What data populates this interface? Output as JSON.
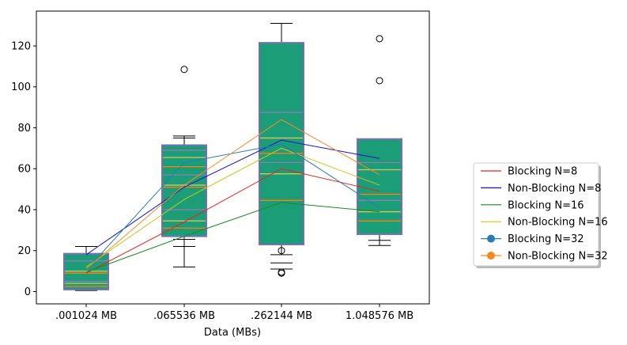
{
  "chart_data": {
    "type": "boxplot",
    "categories": [
      ".001024 MB",
      ".065536 MB",
      ".262144 MB",
      "1.048576 MB"
    ],
    "xlabel": "Data (MBs)",
    "ylabel": "",
    "title": "",
    "ylim": [
      -6,
      137
    ],
    "yticks": [
      0,
      20,
      40,
      60,
      80,
      100,
      120
    ],
    "grid": false,
    "legend_position": "right",
    "box_color": "#1b9e77",
    "box_edge_color": "#7570b3",
    "inner_line_colors": [
      "#ff7f0e",
      "#d6c35a",
      "#8c7fb3"
    ],
    "boxes": [
      {
        "whisker_low": 0.5,
        "q1": 1,
        "q3": 18.5,
        "whisker_high": 22,
        "lines": [
          2.5,
          4,
          5,
          9,
          10,
          15
        ],
        "outliers": []
      },
      {
        "whisker_low": 12,
        "q1": 27,
        "q3": 71.5,
        "whisker_high": 76,
        "lines": [
          31,
          34.5,
          40,
          51,
          52,
          57,
          61,
          65.5,
          69
        ],
        "caps_extra": [
          22,
          25.5,
          75
        ],
        "outliers": [
          108.5
        ]
      },
      {
        "whisker_low": 18,
        "q1": 23,
        "q3": 121.5,
        "whisker_high": 131,
        "lines": [
          44.5,
          57.5,
          63,
          67.5,
          75,
          87.5
        ],
        "caps_extra": [
          11,
          14
        ],
        "outliers": [
          9,
          9.5,
          20
        ]
      },
      {
        "whisker_low": 22.5,
        "q1": 28,
        "q3": 74.5,
        "whisker_high": 74.5,
        "lines": [
          34.5,
          39,
          44.5,
          47.5,
          59.5,
          63
        ],
        "caps_extra": [
          25
        ],
        "outliers": [
          103,
          123.5
        ]
      }
    ],
    "series": [
      {
        "name": "Blocking N=8",
        "color": "#e8241c",
        "marker": false,
        "values": [
          9,
          34,
          60,
          49
        ]
      },
      {
        "name": "Non-Blocking N=8",
        "color": "#1411c9",
        "marker": false,
        "values": [
          18,
          51,
          74,
          65
        ]
      },
      {
        "name": "Blocking N=16",
        "color": "#1d8a1d",
        "marker": false,
        "values": [
          9.5,
          27,
          43.5,
          39
        ]
      },
      {
        "name": "Non-Blocking N=16",
        "color": "#c8c71d",
        "marker": false,
        "values": [
          12,
          45,
          70,
          52
        ]
      },
      {
        "name": "Blocking N=32",
        "color": "#2a7ab5",
        "marker": true,
        "values": [
          10.5,
          63,
          72,
          41
        ]
      },
      {
        "name": "Non-Blocking N=32",
        "color": "#f6891f",
        "marker": true,
        "values": [
          11,
          52,
          84,
          57
        ]
      }
    ]
  }
}
